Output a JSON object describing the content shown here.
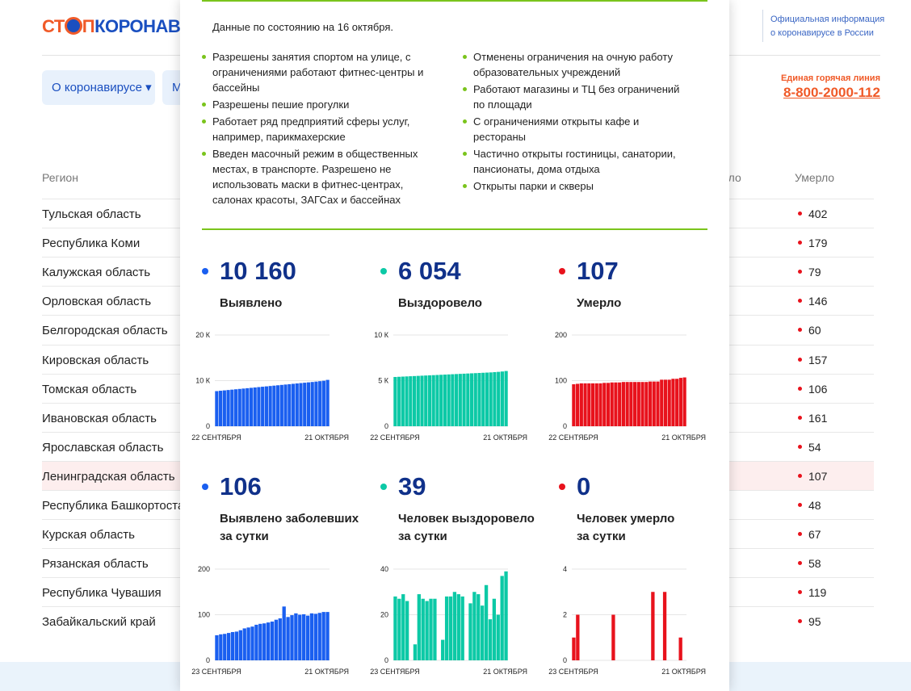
{
  "header": {
    "logo": [
      "СТ",
      "П",
      "КОРОНАВИРУС"
    ],
    "official": [
      "Официальная информация",
      "о коронавирусе в России"
    ],
    "hotline_label": "Единая горячая линия",
    "hotline": "8-800-2000-112"
  },
  "nav": [
    "О коронавирусе",
    "М"
  ],
  "table": {
    "columns": [
      "Регион",
      "Выздоровело",
      "Умерло"
    ],
    "highlight_row": 9,
    "rows": [
      [
        "Тульская область",
        402
      ],
      [
        "Республика Коми",
        179
      ],
      [
        "Калужская область",
        79
      ],
      [
        "Орловская область",
        146
      ],
      [
        "Белгородская область",
        60
      ],
      [
        "Кировская область",
        157
      ],
      [
        "Томская область",
        106
      ],
      [
        "Ивановская область",
        161
      ],
      [
        "Ярославская область",
        54
      ],
      [
        "Ленинградская область",
        107
      ],
      [
        "Республика Башкортостан",
        48
      ],
      [
        "Курская область",
        67
      ],
      [
        "Рязанская область",
        58
      ],
      [
        "Республика Чувашия",
        119
      ],
      [
        "Забайкальский край",
        95
      ]
    ]
  },
  "modal": {
    "date_note": "Данные по состоянию на 16 октября.",
    "left_list": [
      "Разрешены занятия спортом на улице, с ограничениями работают фитнес-центры и бассейны",
      "Разрешены пешие прогулки",
      "Работает ряд предприятий сферы услуг, например, парикмахерские",
      "Введен масочный режим в общественных местах, в транспорте. Разрешено не использовать маски в фитнес-центрах, салонах красоты, ЗАГСах и бассейнах"
    ],
    "right_list": [
      "Отменены ограничения на очную работу образовательных учреждений",
      "Работают магазины и ТЦ без ограничений по площади",
      "С ограничениями открыты кафе и рестораны",
      "Частично открыты гостиницы, санатории, пансионаты, дома отдыха",
      "Открыты парки и скверы"
    ],
    "stats": [
      {
        "value": 10160,
        "value_label": "10 160",
        "label": [
          "Выявлено"
        ],
        "chart": {
          "type": "bar",
          "color": "#1a5ff0",
          "ylim": [
            0,
            20000
          ],
          "yticks": [
            0,
            {
              "value": 10000,
              "label": "10 К"
            },
            {
              "value": 20000,
              "label": "20 К"
            }
          ],
          "x_labels": [
            "22 СЕНТЯБРЯ",
            "21 ОКТЯБРЯ"
          ],
          "values": [
            7700,
            7780,
            7860,
            7940,
            8020,
            8100,
            8180,
            8260,
            8340,
            8420,
            8500,
            8580,
            8660,
            8740,
            8820,
            8900,
            8980,
            9060,
            9140,
            9220,
            9300,
            9380,
            9460,
            9540,
            9620,
            9700,
            9790,
            9880,
            9970,
            10160
          ]
        }
      },
      {
        "value": 6054,
        "value_label": "6 054",
        "label": [
          "Выздоровело"
        ],
        "chart": {
          "type": "bar",
          "color": "#0cc9a6",
          "ylim": [
            0,
            10000
          ],
          "yticks": [
            0,
            {
              "value": 5000,
              "label": "5 К"
            },
            {
              "value": 10000,
              "label": "10 К"
            }
          ],
          "x_labels": [
            "22 СЕНТЯБРЯ",
            "21 ОКТЯБРЯ"
          ],
          "values": [
            5400,
            5420,
            5440,
            5460,
            5480,
            5500,
            5520,
            5540,
            5560,
            5580,
            5600,
            5620,
            5640,
            5660,
            5680,
            5700,
            5720,
            5740,
            5760,
            5780,
            5800,
            5820,
            5840,
            5860,
            5880,
            5900,
            5930,
            5960,
            6000,
            6054
          ]
        }
      },
      {
        "value": 107,
        "label": [
          "Умерло"
        ],
        "chart": {
          "type": "bar",
          "color": "#e8121c",
          "ylim": [
            0,
            200
          ],
          "yticks": [
            0,
            100,
            200
          ],
          "x_labels": [
            "22 СЕНТЯБРЯ",
            "21 ОКТЯБРЯ"
          ],
          "values": [
            92,
            93,
            94,
            94,
            94,
            94,
            94,
            94,
            95,
            95,
            96,
            96,
            96,
            97,
            97,
            97,
            97,
            97,
            97,
            97,
            98,
            98,
            98,
            102,
            102,
            102,
            104,
            104,
            106,
            107
          ]
        }
      },
      {
        "value": 106,
        "label": [
          "Выявлено заболевших",
          "за сутки"
        ],
        "chart": {
          "type": "bar",
          "color": "#1a5ff0",
          "ylim": [
            0,
            200
          ],
          "yticks": [
            0,
            100,
            200
          ],
          "x_labels": [
            "23 СЕНТЯБРЯ",
            "21 ОКТЯБРЯ"
          ],
          "values": [
            55,
            57,
            58,
            60,
            62,
            63,
            66,
            70,
            72,
            74,
            78,
            80,
            81,
            83,
            85,
            89,
            92,
            118,
            95,
            99,
            103,
            100,
            101,
            98,
            103,
            102,
            104,
            106,
            106
          ]
        }
      },
      {
        "value": 39,
        "label": [
          "Человек выздоровело",
          "за сутки"
        ],
        "chart": {
          "type": "bar",
          "color": "#0cc9a6",
          "ylim": [
            0,
            40
          ],
          "yticks": [
            0,
            20,
            40
          ],
          "x_labels": [
            "23 СЕНТЯБРЯ",
            "21 ОКТЯБРЯ"
          ],
          "values": [
            28,
            27,
            29,
            26,
            0,
            7,
            29,
            27,
            26,
            27,
            27,
            0,
            9,
            28,
            28,
            30,
            29,
            28,
            0,
            25,
            30,
            29,
            24,
            33,
            18,
            27,
            20,
            37,
            39
          ]
        }
      },
      {
        "value": 0,
        "label": [
          "Человек умерло",
          "за сутки"
        ],
        "chart": {
          "type": "bar",
          "color": "#e8121c",
          "ylim": [
            0,
            4
          ],
          "yticks": [
            0,
            2,
            4
          ],
          "x_labels": [
            "23 СЕНТЯБРЯ",
            "21 ОКТЯБРЯ"
          ],
          "values": [
            1,
            2,
            0,
            0,
            0,
            0,
            0,
            0,
            0,
            0,
            2,
            0,
            0,
            0,
            0,
            0,
            0,
            0,
            0,
            0,
            3,
            0,
            0,
            3,
            0,
            0,
            0,
            1,
            0
          ]
        }
      }
    ]
  }
}
